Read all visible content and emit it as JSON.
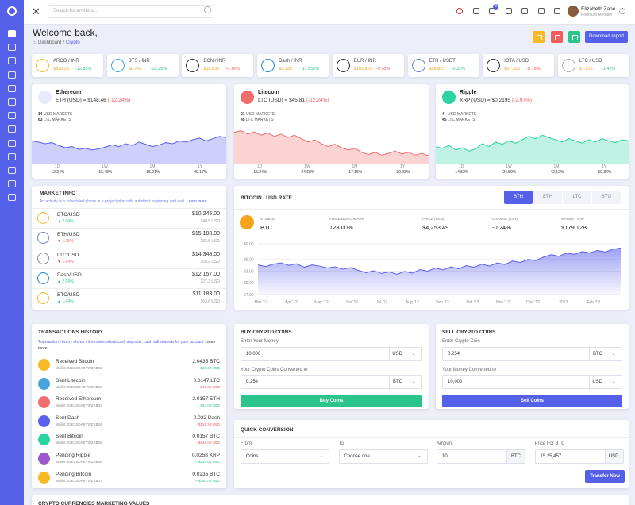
{
  "topbar": {
    "search_placeholder": "Search for anything...",
    "cart_badge": "3",
    "user_name": "Elizabeth Zane",
    "user_role": "Premium Member"
  },
  "header": {
    "title": "Welcome back,",
    "breadcrumb": [
      "Dashboard",
      "/",
      "Crypto"
    ],
    "download_button": "Download report"
  },
  "tickers": [
    {
      "pair": "ARCO / INR",
      "price": "$425.25",
      "change": "-12.85%",
      "color": "#2bc48a",
      "icon": "#f7b924"
    },
    {
      "pair": "BTS / INR",
      "price": "$0.766",
      "change": "-02.25%",
      "color": "#2bc48a",
      "icon": "#4aa3df"
    },
    {
      "pair": "BCN / INR",
      "price": "$16.835",
      "change": "-0.78%",
      "color": "#f25c5c",
      "icon": "#333333"
    },
    {
      "pair": "Dash / INR",
      "price": "$5.135",
      "change": "-11.855%",
      "color": "#2bc48a",
      "icon": "#1e88e5"
    },
    {
      "pair": "EUR / INR",
      "price": "$102.825",
      "change": "-0.78%",
      "color": "#f25c5c",
      "icon": "#333333"
    },
    {
      "pair": "ETH / USDT",
      "price": "$28.825",
      "change": "-0.32%",
      "color": "#2bc48a",
      "icon": "#6b7fd7"
    },
    {
      "pair": "IOTA / USD",
      "price": "$67.325",
      "change": "-0.78%",
      "color": "#f25c5c",
      "icon": "#333333"
    },
    {
      "pair": "LTC / USD",
      "price": "$7.925",
      "change": "-1.42%",
      "color": "#2bc48a",
      "icon": "#b0b0b0"
    }
  ],
  "coin_cards": [
    {
      "name": "Ethereum",
      "rate": "ETH (USD) = $148.46",
      "change": "(-12.24%)",
      "usd_markets": "14",
      "usd_markets_label": "USD MARKETS",
      "ltc_markets": "63",
      "ltc_markets_label": "LTC MARKETS",
      "color": "#5d5fef",
      "icon": "#e9eafd",
      "chart_values": [
        60,
        58,
        55,
        57,
        52,
        48,
        50,
        45,
        47,
        44,
        46,
        49,
        53,
        50,
        55,
        52,
        58,
        54,
        50,
        53,
        57,
        55,
        60,
        58,
        62,
        65,
        60,
        64,
        68,
        66
      ],
      "periods": [
        "1D",
        "1W",
        "1M",
        "1Y"
      ],
      "period_changes": [
        "-12.24%",
        "-16.48%",
        "-15.21%",
        "-40.17%"
      ]
    },
    {
      "name": "Litecoin",
      "rate": "LTC (USD) = $45.81",
      "change": "(-12.24%)",
      "usd_markets": "21",
      "usd_markets_label": "USD MARKETS",
      "ltc_markets": "45",
      "ltc_markets_label": "LTC MARKETS",
      "color": "#f26d6d",
      "icon": "#f26d6d",
      "chart_values": [
        75,
        78,
        72,
        76,
        70,
        74,
        68,
        72,
        66,
        70,
        64,
        58,
        62,
        55,
        50,
        54,
        48,
        44,
        47,
        40,
        36,
        40,
        35,
        38,
        42,
        37,
        40,
        35,
        38,
        34
      ],
      "periods": [
        "1D",
        "1W",
        "1M",
        "1Y"
      ],
      "period_changes": [
        "-15.24%",
        "-24.68%",
        "-17.15%",
        "-30.23%"
      ]
    },
    {
      "name": "Ripple",
      "rate": "XRP (USD) = $0.2195",
      "change": "(-2.97%)",
      "usd_markets": "4",
      "usd_markets_label": "USD MARKETS",
      "ltc_markets": "45",
      "ltc_markets_label": "LTC MARKETS",
      "color": "#2bd4a0",
      "icon": "#2bd4a0",
      "chart_values": [
        50,
        47,
        52,
        44,
        48,
        42,
        46,
        55,
        50,
        58,
        54,
        60,
        56,
        62,
        68,
        64,
        70,
        66,
        62,
        58,
        64,
        60,
        56,
        62,
        58,
        64,
        60,
        57,
        62,
        60
      ],
      "periods": [
        "1D",
        "1W",
        "1M",
        "1Y"
      ],
      "period_changes": [
        "-14.52%",
        "-24.59%",
        "-42.12%",
        "-50.34%"
      ]
    }
  ],
  "market_info": {
    "title": "MARKET INFO",
    "description": "An activity is a scheduled phase in a project plan with a distinct beginning and end.",
    "link": "Learn more",
    "rows": [
      {
        "pair": "BTC/USD",
        "change": "▲ 2.04%",
        "price": "$10,245.00",
        "volume": "340.5 USD",
        "color": "#2bc48a",
        "icon": "#f7b924"
      },
      {
        "pair": "ETH/USD",
        "change": "▼ 1.25%",
        "price": "$15,183.00",
        "volume": "282.5 USD",
        "color": "#f25c5c",
        "icon": "#6b7fd7"
      },
      {
        "pair": "LTC/USD",
        "change": "▼ 1.04%",
        "price": "$14,348.00",
        "volume": "368.2 USD",
        "color": "#f25c5c",
        "icon": "#888888"
      },
      {
        "pair": "Dash/USD",
        "change": "▲ 2.04%",
        "price": "$12,157.00",
        "volume": "127.3 USD",
        "color": "#2bc48a",
        "icon": "#1e88e5"
      },
      {
        "pair": "BTC/USD",
        "change": "▲ 1.04%",
        "price": "$11,183.00",
        "volume": "163.8 USD",
        "color": "#2bc48a",
        "icon": "#f7b924"
      }
    ]
  },
  "bitcoin_rate": {
    "title": "BITCOIN / USD RATE",
    "tabs": [
      "BTH",
      "ETH",
      "LTC",
      "BTG"
    ],
    "stats": [
      {
        "label": "SYMBOL",
        "value": "BTC"
      },
      {
        "label": "PRICE BENCHMARK",
        "value": "128.00%"
      },
      {
        "label": "PRICE (USD)",
        "value": "$4,253.49"
      },
      {
        "label": "CHANGE (24H)",
        "value": "-0.24%"
      },
      {
        "label": "MARKET CAP",
        "value": "$179.12B"
      }
    ],
    "chart": {
      "ylim": [
        27,
        40
      ],
      "yticks": [
        {
          "value": 40,
          "label": "40.00"
        },
        {
          "value": 36,
          "label": "36.00"
        },
        {
          "value": 33,
          "label": "33.00"
        },
        {
          "value": 30,
          "label": "30.00"
        },
        {
          "value": 27,
          "label": "27.00"
        }
      ],
      "xlabels": [
        "Mar '12",
        "Apr '12",
        "May '12",
        "Jun '12",
        "Jul '12",
        "Aug '12",
        "Sep '12",
        "Oct '12",
        "Nov '12",
        "Dec '12",
        "2013",
        "Feb '13"
      ],
      "values": [
        34.6,
        34.2,
        34.8,
        35.1,
        34.5,
        34.9,
        34.0,
        34.6,
        34.3,
        33.8,
        34.1,
        33.5,
        33.9,
        33.2,
        32.6,
        33.1,
        32.4,
        32.8,
        32.2,
        32.9,
        32.5,
        33.4,
        33.0,
        33.8,
        33.3,
        34.1,
        33.6,
        34.4,
        34.0,
        34.8,
        34.3,
        35.1,
        34.7,
        35.6,
        35.2,
        36.0,
        35.7,
        36.6,
        37.2,
        36.8,
        37.6,
        37.3,
        38.0,
        37.7,
        38.3,
        37.9,
        38.6,
        38.9
      ]
    }
  },
  "transactions": {
    "title": "TRANSACTIONS HISTORY",
    "description": "Transaction History shows information about cash deposits, cash withdrawals for your account",
    "link": "Learn more",
    "rows": [
      {
        "name": "Received Bitcoin",
        "wallet": "Wallet: 03E2SDAEYWZXB01",
        "amount": "2.0435 BTC",
        "usd": "+ $23.00 USD",
        "color": "#2bc48a",
        "icon": "#f7b924"
      },
      {
        "name": "Sent Litecoin",
        "wallet": "Wallet: 03E2SDAEYWZXB03",
        "amount": "0.0147 LTC",
        "usd": "- $12.00 USD",
        "color": "#f25c5c",
        "icon": "#4aa3df"
      },
      {
        "name": "Received Ethereum",
        "wallet": "Wallet: 03E2SDAEYWZXB03",
        "amount": "2.0157 ETH",
        "usd": "+ $24.00 USD",
        "color": "#2bc48a",
        "icon": "#f26d6d"
      },
      {
        "name": "Sent Dash",
        "wallet": "Wallet: 03E2SDAEYWZXB04",
        "amount": "0.032 Dash",
        "usd": "- $128.39 USD",
        "color": "#f25c5c",
        "icon": "#5d5fef"
      },
      {
        "name": "Sent Bitcoin",
        "wallet": "Wallet: 03E2SDAEYWZXB05",
        "amount": "0.0157 BTC",
        "usd": "- $149.00 USD",
        "color": "#f25c5c",
        "icon": "#2bd4a0"
      },
      {
        "name": "Pending Ripple",
        "wallet": "Wallet: 03E2SDAEYWZXB06",
        "amount": "0.0258 XRP",
        "usd": "+ $220.00 USD",
        "color": "#2bc48a",
        "icon": "#9b59d0"
      },
      {
        "name": "Pending Bitcoin",
        "wallet": "Wallet: 03E2SDAEYWZXB07",
        "amount": "0.0235 BTC",
        "usd": "+ $340.00 USD",
        "color": "#2bc48a",
        "icon": "#f7b924"
      }
    ]
  },
  "buy": {
    "title": "BUY CRYPTO COINS",
    "label1": "Enter Your Money",
    "value1": "10,000",
    "unit1": "USD",
    "label2": "Your Crypto Coins Converted to",
    "value2": "0.254",
    "unit2": "BTC",
    "button": "Buy Coins"
  },
  "sell": {
    "title": "SELL CRYPTO COINS",
    "label1": "Enter Crypto Coin",
    "value1": "0.254",
    "unit1": "BTC",
    "label2": "Your Money Converted to",
    "value2": "10,000",
    "unit2": "USD",
    "button": "Sell Coins"
  },
  "conversion": {
    "title": "QUICK CONVERSION",
    "fields": [
      {
        "label": "From",
        "value": "Coins"
      },
      {
        "label": "To",
        "value": "Choose one"
      },
      {
        "label": "Amount",
        "value": "10",
        "unit": "BTC"
      },
      {
        "label": "Price For BTC",
        "value": "15,25,457",
        "unit": "USD"
      }
    ],
    "button": "Transfer Now"
  },
  "bottom_card": {
    "title": "CRYPTO CURRENCIES MARKETING VALUES"
  }
}
